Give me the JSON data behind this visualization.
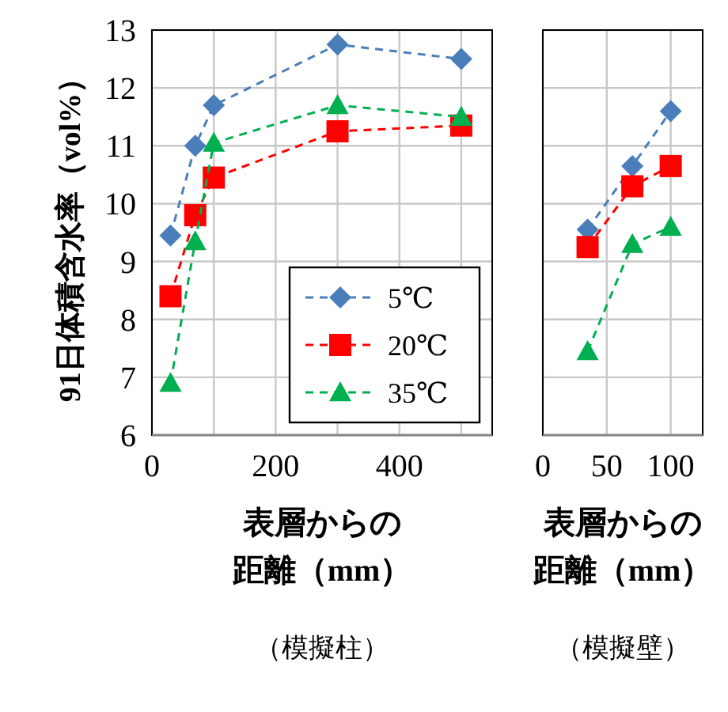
{
  "chart_data": [
    {
      "type": "line",
      "xlabel": "表層からの距離（mm）",
      "ylabel": "91日体積含水率（vol%）",
      "x": [
        30,
        70,
        100,
        300,
        500
      ],
      "xlim": [
        0,
        550
      ],
      "xticks": [
        0,
        {
          "value": 100,
          "label": null
        },
        200,
        {
          "value": 300,
          "label": null
        },
        400,
        {
          "value": 500,
          "label": null
        }
      ],
      "ylim": [
        6,
        13
      ],
      "yticks": [
        6,
        7,
        8,
        9,
        10,
        11,
        12,
        13
      ],
      "grid": true,
      "legend": "bottom right",
      "line_style": "dashed",
      "annotations": [
        "（模擬柱）"
      ],
      "series": [
        {
          "name": "5℃",
          "color": "#4a7ebb",
          "marker": "diamond",
          "values": [
            9.45,
            11.0,
            11.7,
            12.75,
            12.5
          ]
        },
        {
          "name": "20℃",
          "color": "#ff0000",
          "marker": "square",
          "values": [
            8.4,
            9.8,
            10.45,
            11.25,
            11.35
          ]
        },
        {
          "name": "35℃",
          "color": "#00b050",
          "marker": "triangle",
          "values": [
            6.9,
            9.35,
            11.05,
            11.7,
            11.5
          ]
        }
      ]
    },
    {
      "type": "line",
      "xlabel": "表層からの距離（mm）",
      "x": [
        35,
        70,
        100
      ],
      "xlim": [
        0,
        125
      ],
      "xticks": [
        0,
        50,
        100
      ],
      "ylim": [
        6,
        13
      ],
      "yticks": [
        6,
        7,
        8,
        9,
        10,
        11,
        12,
        13
      ],
      "tick_labels": "x",
      "grid": true,
      "line_style": "dashed",
      "annotations": [
        "（模擬壁）"
      ],
      "series": [
        {
          "color": "#4a7ebb",
          "marker": "diamond",
          "values": [
            9.55,
            10.65,
            11.6
          ]
        },
        {
          "color": "#ff0000",
          "marker": "square",
          "values": [
            9.25,
            10.3,
            10.65
          ]
        },
        {
          "color": "#00b050",
          "marker": "triangle",
          "values": [
            7.45,
            9.3,
            9.6
          ]
        }
      ]
    }
  ]
}
